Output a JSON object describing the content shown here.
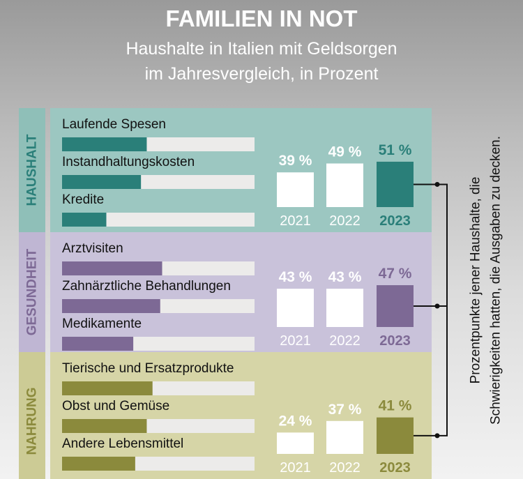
{
  "title": "FAMILIEN IN NOT",
  "subtitle_line1": "Haushalte in Italien mit Geldsorgen",
  "subtitle_line2": "im Jahresvergleich, in Prozent",
  "side_note_line1": "Prozentpunkte jener Haushalte, die",
  "side_note_line2": "Schwierigkeiten hatten, die Ausgaben zu decken.",
  "colors": {
    "background_top": "#9a9a9a",
    "background_bottom": "#f2f2f2",
    "haushalt_panel": "#9cc7c1",
    "haushalt_label_panel": "#8fbfb8",
    "haushalt_accent": "#2a7f79",
    "gesundheit_panel": "#c9c2da",
    "gesundheit_label_panel": "#bfb6d3",
    "gesundheit_accent": "#7d6995",
    "nahrung_panel": "#d6d5a7",
    "nahrung_label_panel": "#cccb95",
    "nahrung_accent": "#8b8a3c",
    "bar_track": "#ecebea",
    "year_bar": "#ffffff"
  },
  "chart_data": [
    {
      "type": "bar",
      "section": "HAUSHALT",
      "x": [
        "2021",
        "2022",
        "2023"
      ],
      "values": [
        39,
        49,
        51
      ],
      "value_labels": [
        "39 %",
        "49 %",
        "51 %"
      ],
      "subcategories": [
        "Laufende Spesen",
        "Instandhaltungskosten",
        "Kredite"
      ],
      "subcategory_fill": [
        0.44,
        0.41,
        0.23
      ]
    },
    {
      "type": "bar",
      "section": "GESUNDHEIT",
      "x": [
        "2021",
        "2022",
        "2023"
      ],
      "values": [
        43,
        43,
        47
      ],
      "value_labels": [
        "43 %",
        "43 %",
        "47 %"
      ],
      "subcategories": [
        "Arztvisiten",
        "Zahnärztliche Behandlungen",
        "Medikamente"
      ],
      "subcategory_fill": [
        0.52,
        0.51,
        0.37
      ]
    },
    {
      "type": "bar",
      "section": "NAHRUNG",
      "x": [
        "2021",
        "2022",
        "2023"
      ],
      "values": [
        24,
        37,
        41
      ],
      "value_labels": [
        "24 %",
        "37 %",
        "41 %"
      ],
      "subcategories": [
        "Tierische und Ersatzprodukte",
        "Obst und Gemüse",
        "Andere Lebensmittel"
      ],
      "subcategory_fill": [
        0.47,
        0.44,
        0.38
      ]
    }
  ]
}
